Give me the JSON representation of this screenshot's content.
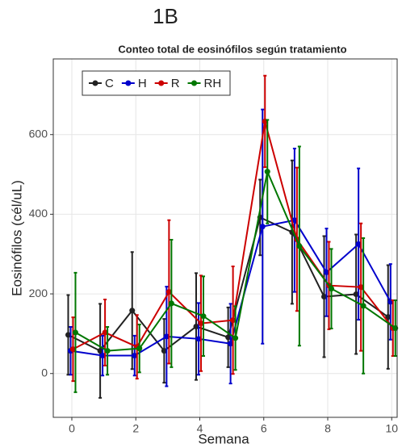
{
  "panel_label": "1B",
  "chart_data": {
    "type": "line",
    "title": "Conteo total de eosinófilos según tratamiento",
    "x_label": "Semana",
    "y_label": "Eosinófilos (cél/uL)",
    "x": [
      0,
      1,
      2,
      3,
      4,
      5,
      6,
      7,
      8,
      9,
      10
    ],
    "xlim": [
      -0.58,
      10.17
    ],
    "xticks": [
      0,
      2,
      4,
      6,
      8,
      10
    ],
    "ylim": [
      -110,
      790
    ],
    "yticks": [
      0,
      200,
      400,
      600
    ],
    "grid": true,
    "legend_position": "top-left",
    "series": [
      {
        "name": "C",
        "color": "#222222",
        "values": [
          97,
          57,
          158,
          57,
          118,
          91,
          392,
          355,
          193,
          199,
          142
        ],
        "errors": [
          100,
          118,
          147,
          80,
          134,
          75,
          95,
          180,
          152,
          150,
          130
        ]
      },
      {
        "name": "H",
        "color": "#0000cc",
        "values": [
          57,
          45,
          45,
          93,
          87,
          75,
          369,
          385,
          254,
          325,
          180
        ],
        "errors": [
          60,
          50,
          50,
          125,
          90,
          100,
          294,
          180,
          110,
          190,
          95
        ]
      },
      {
        "name": "R",
        "color": "#cc0000",
        "values": [
          61,
          103,
          67,
          205,
          126,
          134,
          633,
          337,
          221,
          217,
          114
        ],
        "errors": [
          80,
          83,
          80,
          180,
          120,
          135,
          115,
          180,
          110,
          160,
          70
        ]
      },
      {
        "name": "RH",
        "color": "#007700",
        "values": [
          103,
          57,
          63,
          176,
          144,
          89,
          507,
          320,
          213,
          170,
          114
        ],
        "errors": [
          150,
          60,
          60,
          160,
          100,
          80,
          130,
          250,
          100,
          170,
          70
        ]
      }
    ]
  }
}
